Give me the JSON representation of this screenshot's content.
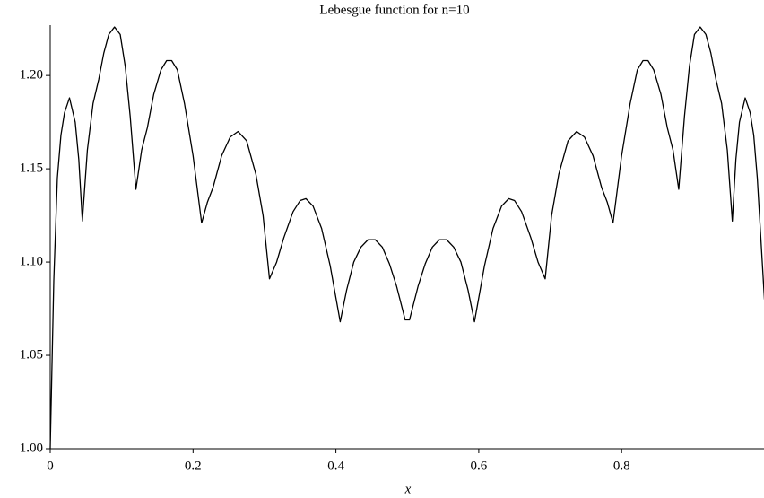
{
  "chart_data": {
    "type": "line",
    "title": "Lebesgue function for n=10",
    "x_label": "x",
    "color": "#000000",
    "xlim": [
      0,
      1
    ],
    "ylim": [
      1.0,
      1.227
    ],
    "xticks": [
      0,
      0.2,
      0.4,
      0.6,
      0.8
    ],
    "yticks": [
      {
        "value": 1.0,
        "label": "1.00"
      },
      {
        "value": 1.05,
        "label": "1.05"
      },
      {
        "value": 1.1,
        "label": "1.10"
      },
      {
        "value": 1.15,
        "label": "1.15"
      },
      {
        "value": 1.2,
        "label": "1.20"
      }
    ],
    "grid": false,
    "x": [
      0,
      0.005,
      0.01,
      0.015,
      0.02,
      0.027,
      0.035,
      0.04,
      0.045,
      0.052,
      0.06,
      0.068,
      0.075,
      0.082,
      0.09,
      0.098,
      0.105,
      0.112,
      0.12,
      0.128,
      0.136,
      0.145,
      0.155,
      0.163,
      0.17,
      0.178,
      0.188,
      0.2,
      0.212,
      0.22,
      0.228,
      0.24,
      0.252,
      0.263,
      0.275,
      0.288,
      0.298,
      0.307,
      0.317,
      0.327,
      0.34,
      0.35,
      0.358,
      0.368,
      0.38,
      0.392,
      0.406,
      0.415,
      0.425,
      0.435,
      0.445,
      0.455,
      0.465,
      0.475,
      0.485,
      0.497,
      0.503,
      0.515,
      0.525,
      0.535,
      0.545,
      0.555,
      0.565,
      0.575,
      0.585,
      0.594,
      0.608,
      0.62,
      0.632,
      0.642,
      0.65,
      0.66,
      0.673,
      0.683,
      0.693,
      0.702,
      0.712,
      0.725,
      0.737,
      0.748,
      0.76,
      0.772,
      0.78,
      0.788,
      0.8,
      0.812,
      0.822,
      0.83,
      0.837,
      0.845,
      0.855,
      0.864,
      0.872,
      0.88,
      0.888,
      0.895,
      0.902,
      0.91,
      0.918,
      0.925,
      0.932,
      0.94,
      0.948,
      0.955,
      0.96,
      0.965,
      0.973,
      0.98,
      0.985,
      0.99,
      1.0
    ],
    "values": [
      1.0,
      1.09,
      1.145,
      1.168,
      1.18,
      1.188,
      1.175,
      1.155,
      1.122,
      1.16,
      1.185,
      1.198,
      1.212,
      1.222,
      1.226,
      1.222,
      1.205,
      1.178,
      1.139,
      1.16,
      1.172,
      1.19,
      1.203,
      1.208,
      1.208,
      1.203,
      1.185,
      1.157,
      1.121,
      1.132,
      1.14,
      1.157,
      1.167,
      1.17,
      1.165,
      1.147,
      1.125,
      1.091,
      1.1,
      1.113,
      1.127,
      1.133,
      1.134,
      1.13,
      1.118,
      1.098,
      1.068,
      1.085,
      1.1,
      1.108,
      1.112,
      1.112,
      1.108,
      1.099,
      1.087,
      1.069,
      1.069,
      1.087,
      1.099,
      1.108,
      1.112,
      1.112,
      1.108,
      1.1,
      1.085,
      1.068,
      1.098,
      1.118,
      1.13,
      1.134,
      1.133,
      1.127,
      1.113,
      1.1,
      1.091,
      1.125,
      1.147,
      1.165,
      1.17,
      1.167,
      1.157,
      1.14,
      1.132,
      1.121,
      1.157,
      1.185,
      1.203,
      1.208,
      1.208,
      1.203,
      1.19,
      1.172,
      1.16,
      1.139,
      1.178,
      1.205,
      1.222,
      1.226,
      1.222,
      1.212,
      1.198,
      1.185,
      1.16,
      1.122,
      1.155,
      1.175,
      1.188,
      1.18,
      1.168,
      1.145,
      1.08
    ]
  }
}
